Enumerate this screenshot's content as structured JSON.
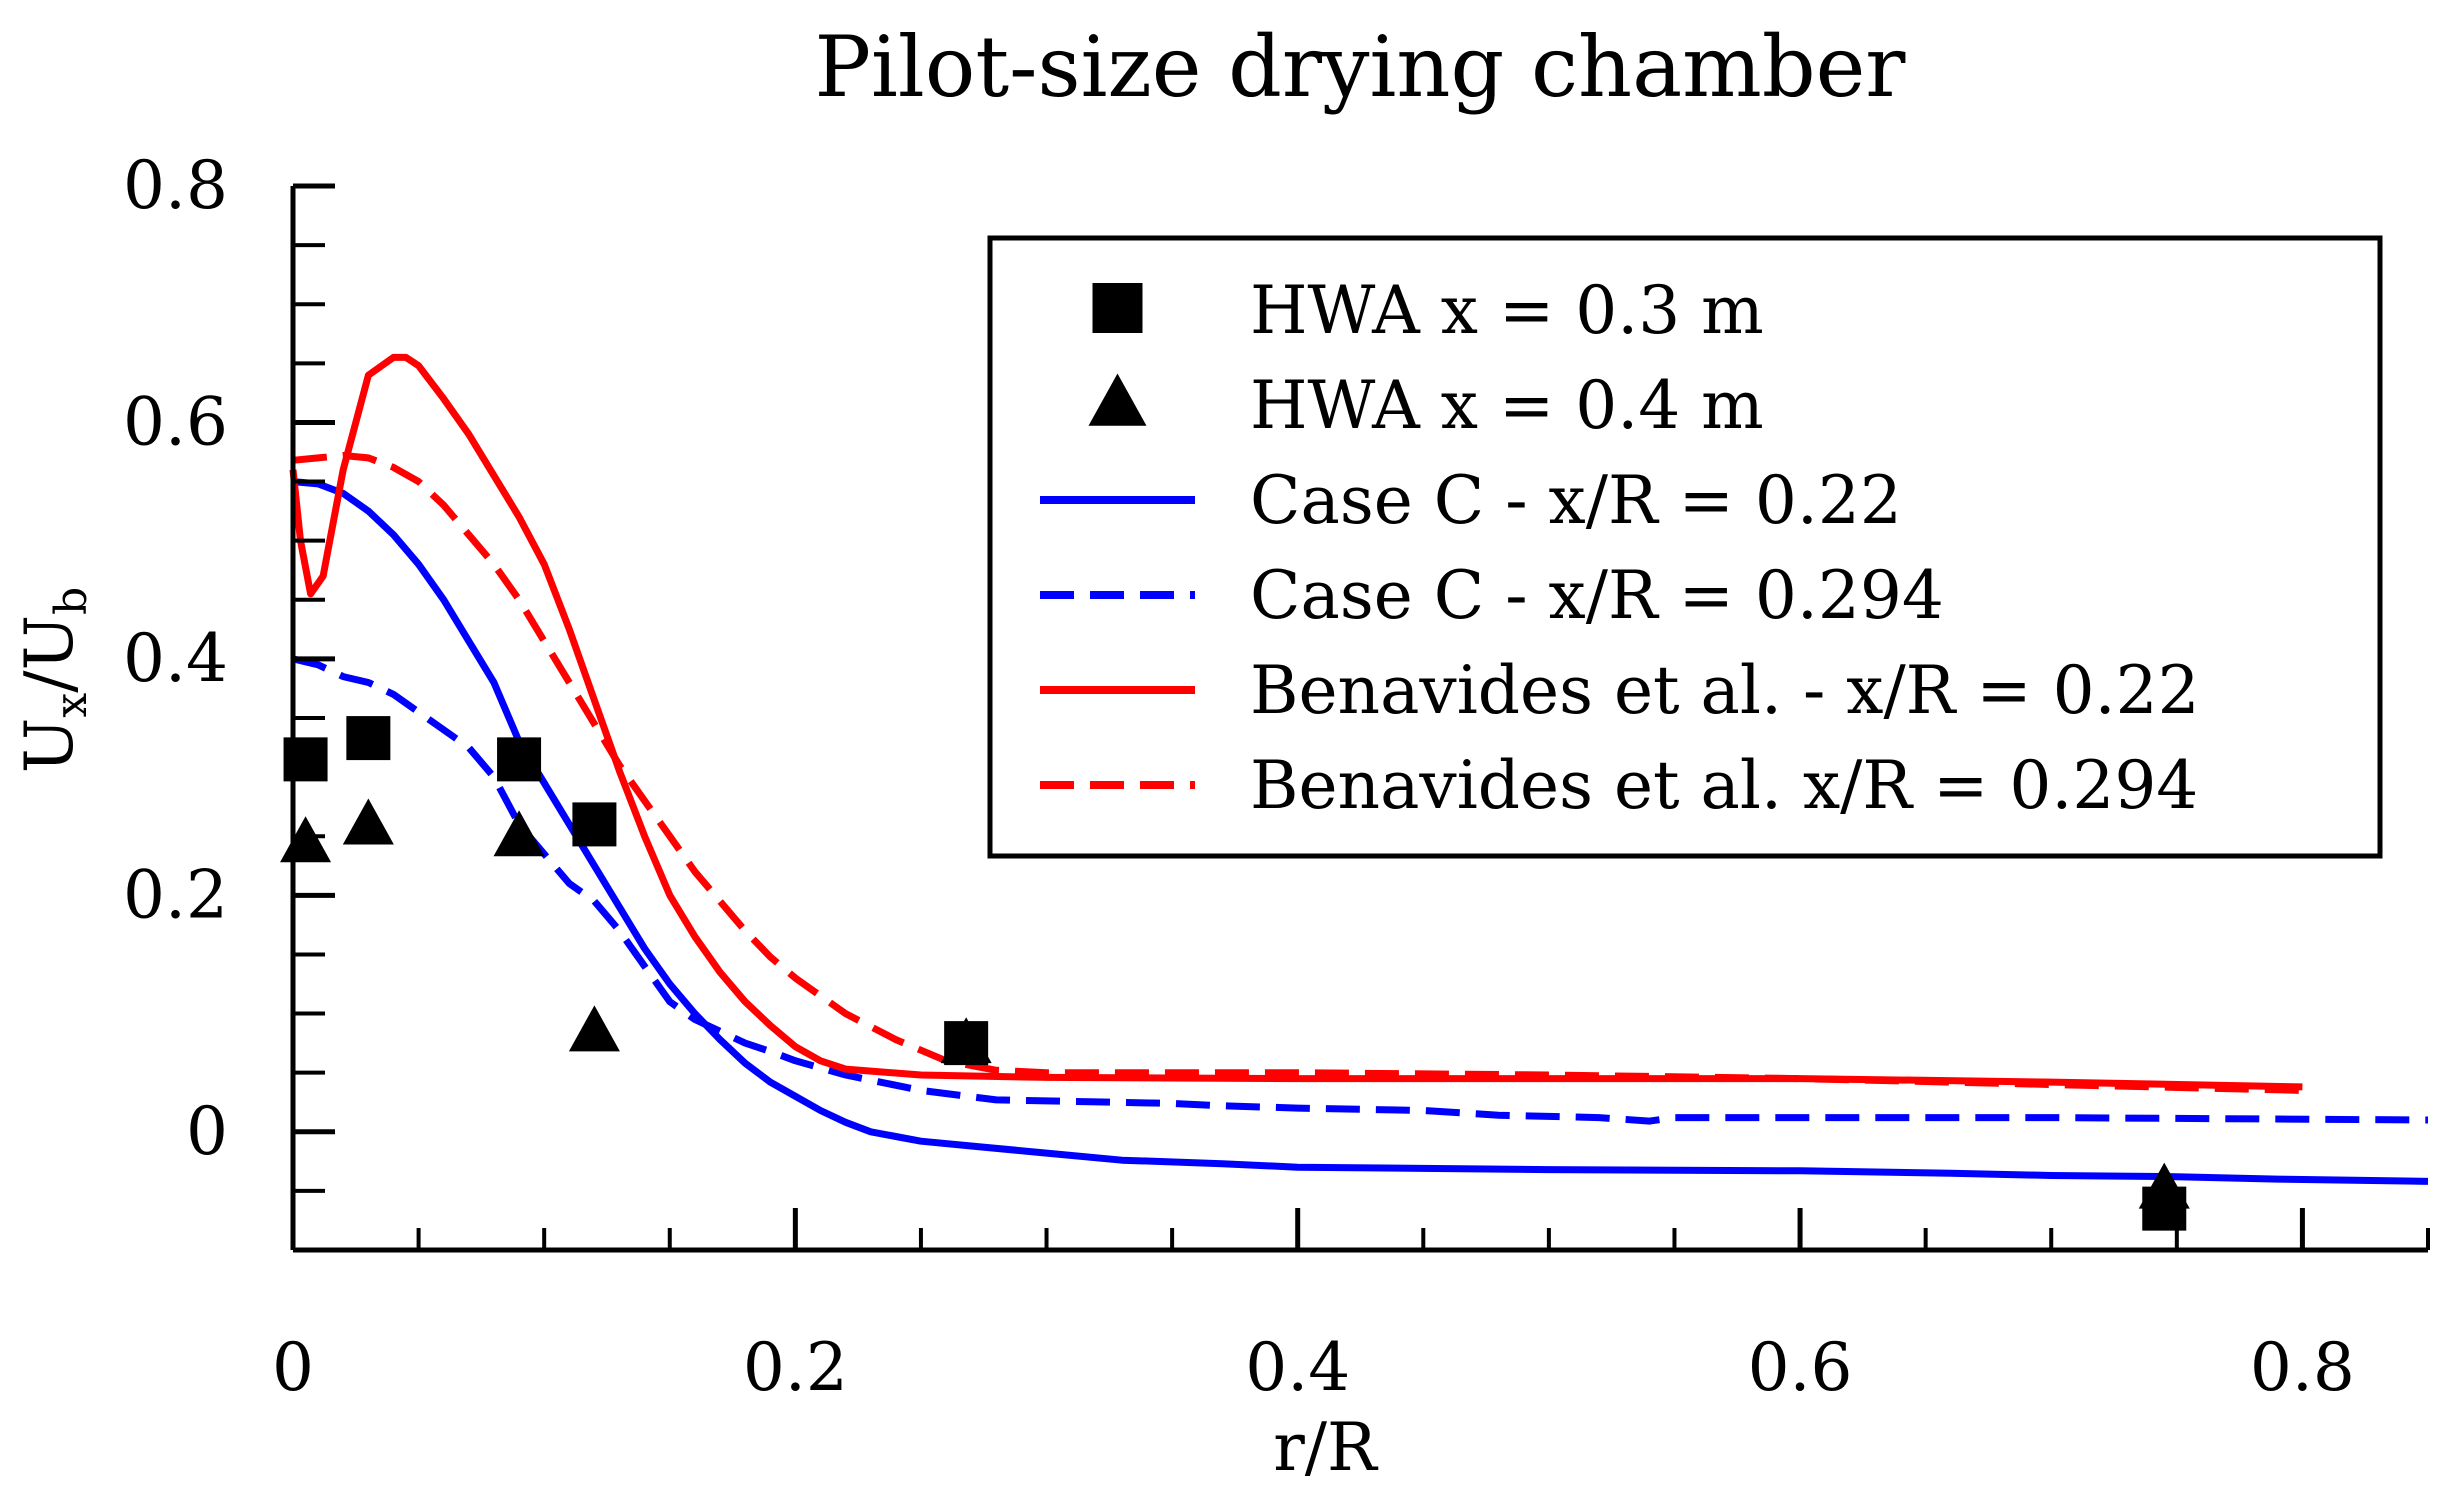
{
  "chart_data": {
    "type": "line",
    "title": "Pilot-size drying chamber",
    "xlabel": "r/R",
    "ylabel": {
      "main": "U",
      "sub_x": "x",
      "slash": "/U",
      "sub_b": "b"
    },
    "xlim": [
      0,
      0.85
    ],
    "ylim": [
      -0.1,
      0.8
    ],
    "xticks": [
      {
        "v": 0,
        "label": "0"
      },
      {
        "v": 0.2,
        "label": "0.2"
      },
      {
        "v": 0.4,
        "label": "0.4"
      },
      {
        "v": 0.6,
        "label": "0.6"
      },
      {
        "v": 0.8,
        "label": "0.8"
      }
    ],
    "yticks": [
      {
        "v": 0,
        "label": "0"
      },
      {
        "v": 0.2,
        "label": "0.2"
      },
      {
        "v": 0.4,
        "label": "0.4"
      },
      {
        "v": 0.6,
        "label": "0.6"
      },
      {
        "v": 0.8,
        "label": "0.8"
      }
    ],
    "xminor_step": 0.05,
    "yminor_step": 0.05,
    "legend_position": "top-right",
    "series": [
      {
        "name": "HWA x = 0.3 m",
        "kind": "marker",
        "marker": "square",
        "color": "#000000",
        "points": [
          [
            0.005,
            0.315
          ],
          [
            0.03,
            0.333
          ],
          [
            0.09,
            0.315
          ],
          [
            0.12,
            0.26
          ],
          [
            0.268,
            0.075
          ],
          [
            0.745,
            -0.065
          ]
        ]
      },
      {
        "name": "HWA x = 0.4 m",
        "kind": "marker",
        "marker": "triangle",
        "color": "#000000",
        "points": [
          [
            0.005,
            0.245
          ],
          [
            0.03,
            0.26
          ],
          [
            0.09,
            0.25
          ],
          [
            0.12,
            0.085
          ],
          [
            0.268,
            0.075
          ],
          [
            0.745,
            -0.048
          ]
        ]
      },
      {
        "name": "Case C - x/R = 0.22",
        "kind": "line",
        "dash": false,
        "color": "#0000ff",
        "points": [
          [
            0,
            0.55
          ],
          [
            0.01,
            0.548
          ],
          [
            0.02,
            0.54
          ],
          [
            0.03,
            0.525
          ],
          [
            0.04,
            0.505
          ],
          [
            0.05,
            0.48
          ],
          [
            0.06,
            0.45
          ],
          [
            0.07,
            0.415
          ],
          [
            0.08,
            0.38
          ],
          [
            0.09,
            0.33
          ],
          [
            0.1,
            0.295
          ],
          [
            0.11,
            0.26
          ],
          [
            0.12,
            0.225
          ],
          [
            0.13,
            0.19
          ],
          [
            0.14,
            0.155
          ],
          [
            0.15,
            0.125
          ],
          [
            0.16,
            0.1
          ],
          [
            0.17,
            0.078
          ],
          [
            0.18,
            0.058
          ],
          [
            0.19,
            0.042
          ],
          [
            0.2,
            0.03
          ],
          [
            0.21,
            0.018
          ],
          [
            0.22,
            0.008
          ],
          [
            0.23,
            0.0
          ],
          [
            0.24,
            -0.004
          ],
          [
            0.25,
            -0.008
          ],
          [
            0.27,
            -0.012
          ],
          [
            0.3,
            -0.018
          ],
          [
            0.33,
            -0.024
          ],
          [
            0.37,
            -0.027
          ],
          [
            0.4,
            -0.03
          ],
          [
            0.5,
            -0.032
          ],
          [
            0.6,
            -0.033
          ],
          [
            0.66,
            -0.035
          ],
          [
            0.7,
            -0.037
          ],
          [
            0.75,
            -0.038
          ],
          [
            0.79,
            -0.04
          ],
          [
            0.85,
            -0.042
          ]
        ]
      },
      {
        "name": "Case C - x/R = 0.294",
        "kind": "line",
        "dash": true,
        "color": "#0000ff",
        "points": [
          [
            0,
            0.4
          ],
          [
            0.01,
            0.395
          ],
          [
            0.02,
            0.385
          ],
          [
            0.03,
            0.38
          ],
          [
            0.04,
            0.37
          ],
          [
            0.05,
            0.355
          ],
          [
            0.06,
            0.34
          ],
          [
            0.07,
            0.325
          ],
          [
            0.08,
            0.3
          ],
          [
            0.09,
            0.26
          ],
          [
            0.1,
            0.235
          ],
          [
            0.11,
            0.21
          ],
          [
            0.12,
            0.195
          ],
          [
            0.13,
            0.17
          ],
          [
            0.14,
            0.14
          ],
          [
            0.15,
            0.11
          ],
          [
            0.16,
            0.095
          ],
          [
            0.17,
            0.085
          ],
          [
            0.18,
            0.075
          ],
          [
            0.19,
            0.068
          ],
          [
            0.2,
            0.06
          ],
          [
            0.22,
            0.048
          ],
          [
            0.25,
            0.035
          ],
          [
            0.28,
            0.027
          ],
          [
            0.35,
            0.024
          ],
          [
            0.37,
            0.022
          ],
          [
            0.4,
            0.02
          ],
          [
            0.45,
            0.018
          ],
          [
            0.48,
            0.014
          ],
          [
            0.52,
            0.012
          ],
          [
            0.54,
            0.009
          ],
          [
            0.55,
            0.012
          ],
          [
            0.6,
            0.012
          ],
          [
            0.7,
            0.012
          ],
          [
            0.85,
            0.01
          ]
        ]
      },
      {
        "name": "Benavides et al. - x/R = 0.22",
        "kind": "line",
        "dash": false,
        "color": "#ff0000",
        "points": [
          [
            0,
            0.56
          ],
          [
            0.003,
            0.5
          ],
          [
            0.007,
            0.455
          ],
          [
            0.012,
            0.47
          ],
          [
            0.02,
            0.56
          ],
          [
            0.03,
            0.64
          ],
          [
            0.04,
            0.655
          ],
          [
            0.045,
            0.655
          ],
          [
            0.05,
            0.648
          ],
          [
            0.06,
            0.62
          ],
          [
            0.07,
            0.59
          ],
          [
            0.08,
            0.555
          ],
          [
            0.09,
            0.52
          ],
          [
            0.1,
            0.48
          ],
          [
            0.11,
            0.425
          ],
          [
            0.12,
            0.365
          ],
          [
            0.13,
            0.305
          ],
          [
            0.14,
            0.25
          ],
          [
            0.15,
            0.2
          ],
          [
            0.16,
            0.165
          ],
          [
            0.17,
            0.135
          ],
          [
            0.18,
            0.11
          ],
          [
            0.19,
            0.09
          ],
          [
            0.2,
            0.072
          ],
          [
            0.21,
            0.06
          ],
          [
            0.22,
            0.053
          ],
          [
            0.25,
            0.048
          ],
          [
            0.3,
            0.046
          ],
          [
            0.4,
            0.045
          ],
          [
            0.5,
            0.045
          ],
          [
            0.6,
            0.045
          ],
          [
            0.7,
            0.042
          ],
          [
            0.8,
            0.038
          ]
        ]
      },
      {
        "name": "Benavides et al. x/R = 0.294",
        "kind": "line",
        "dash": true,
        "color": "#ff0000",
        "points": [
          [
            0,
            0.568
          ],
          [
            0.01,
            0.57
          ],
          [
            0.02,
            0.572
          ],
          [
            0.03,
            0.57
          ],
          [
            0.04,
            0.562
          ],
          [
            0.05,
            0.55
          ],
          [
            0.06,
            0.53
          ],
          [
            0.07,
            0.505
          ],
          [
            0.08,
            0.48
          ],
          [
            0.09,
            0.45
          ],
          [
            0.1,
            0.415
          ],
          [
            0.11,
            0.38
          ],
          [
            0.12,
            0.345
          ],
          [
            0.13,
            0.31
          ],
          [
            0.14,
            0.28
          ],
          [
            0.15,
            0.25
          ],
          [
            0.16,
            0.22
          ],
          [
            0.17,
            0.195
          ],
          [
            0.18,
            0.17
          ],
          [
            0.19,
            0.148
          ],
          [
            0.2,
            0.13
          ],
          [
            0.22,
            0.1
          ],
          [
            0.24,
            0.078
          ],
          [
            0.26,
            0.06
          ],
          [
            0.28,
            0.052
          ],
          [
            0.3,
            0.05
          ],
          [
            0.4,
            0.05
          ],
          [
            0.5,
            0.048
          ],
          [
            0.6,
            0.045
          ],
          [
            0.7,
            0.04
          ],
          [
            0.8,
            0.035
          ]
        ]
      }
    ]
  }
}
